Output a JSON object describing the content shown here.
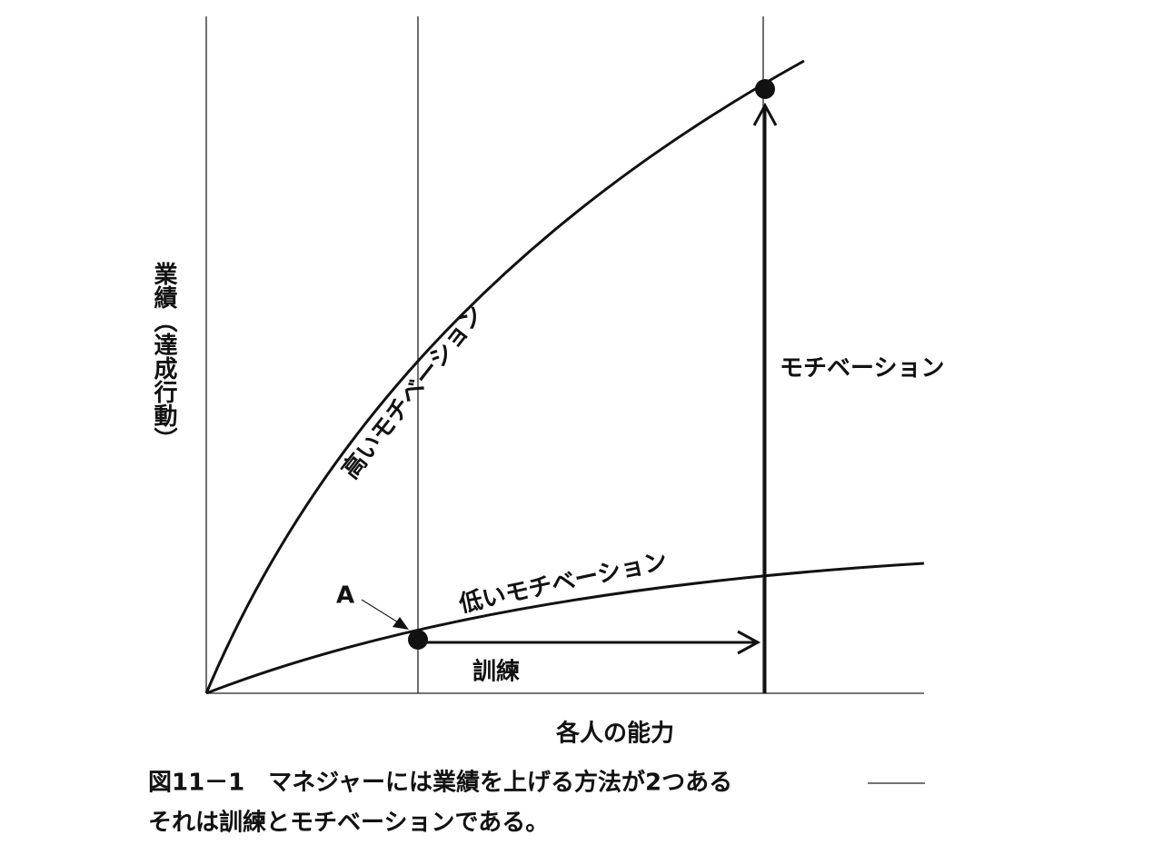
{
  "y_axis_label": "業績（達成行動）",
  "x_axis_label": "各人の能力",
  "curves": [
    {
      "label": "高いモチベーション"
    },
    {
      "label": "低いモチベーション"
    }
  ],
  "point_label": "A",
  "arrows": [
    {
      "label": "訓練"
    },
    {
      "label": "モチベーション"
    }
  ],
  "caption": [
    "図11－1　マネジャーには業績を上げる方法が2つある",
    "それは訓練とモチベーションである。"
  ]
}
